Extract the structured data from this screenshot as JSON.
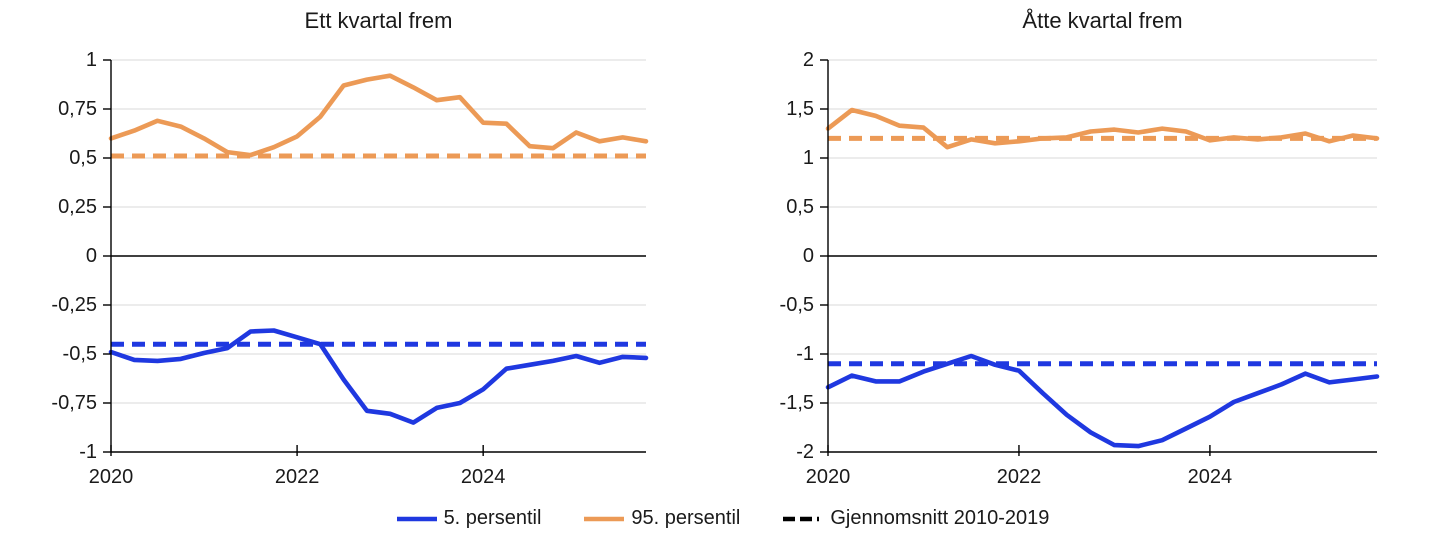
{
  "colors": {
    "p5_blue": "#1F38E0",
    "p95_orange": "#EC9A56",
    "mean_black": "#000000",
    "gridline": "#D9D9D9",
    "axis": "#000000"
  },
  "legend": {
    "items": [
      {
        "label": "5. persentil",
        "color": "#1F38E0",
        "dashed": false
      },
      {
        "label": "95. persentil",
        "color": "#EC9A56",
        "dashed": false
      },
      {
        "label": "Gjennomsnitt 2010-2019",
        "color": "#000000",
        "dashed": true
      }
    ]
  },
  "chart_data": [
    {
      "type": "line",
      "title": "Ett kvartal frem",
      "x": [
        "2020Q1",
        "2020Q2",
        "2020Q3",
        "2020Q4",
        "2021Q1",
        "2021Q2",
        "2021Q3",
        "2021Q4",
        "2022Q1",
        "2022Q2",
        "2022Q3",
        "2022Q4",
        "2023Q1",
        "2023Q2",
        "2023Q3",
        "2023Q4",
        "2024Q1",
        "2024Q2",
        "2024Q3",
        "2024Q4",
        "2025Q1",
        "2025Q2",
        "2025Q3",
        "2025Q4"
      ],
      "ylim": [
        -1,
        1
      ],
      "grid": "horizontal",
      "y_tick_labels": [
        "1",
        "0,75",
        "0,5",
        "0,25",
        "0",
        "-0,25",
        "-0,5",
        "-0,75",
        "-1"
      ],
      "y_tick_values": [
        1,
        0.75,
        0.5,
        0.25,
        0,
        -0.25,
        -0.5,
        -0.75,
        -1
      ],
      "x_ticks": [
        {
          "index": 0,
          "label": "2020"
        },
        {
          "index": 8,
          "label": "2022"
        },
        {
          "index": 16,
          "label": "2024"
        }
      ],
      "series": [
        {
          "name": "95. persentil",
          "style": "solid",
          "color": "#EC9A56",
          "values": [
            0.6,
            0.64,
            0.69,
            0.66,
            0.6,
            0.53,
            0.515,
            0.555,
            0.61,
            0.71,
            0.87,
            0.9,
            0.92,
            0.86,
            0.795,
            0.81,
            0.68,
            0.675,
            0.56,
            0.55,
            0.63,
            0.585,
            0.605,
            0.585
          ]
        },
        {
          "name": "5. persentil",
          "style": "solid",
          "color": "#1F38E0",
          "values": [
            -0.49,
            -0.53,
            -0.535,
            -0.525,
            -0.495,
            -0.47,
            -0.385,
            -0.38,
            -0.415,
            -0.45,
            -0.63,
            -0.79,
            -0.805,
            -0.85,
            -0.775,
            -0.75,
            -0.68,
            -0.575,
            -0.555,
            -0.535,
            -0.51,
            -0.545,
            -0.515,
            -0.52
          ]
        },
        {
          "name": "Gjennomsnitt 2010-2019 (95. persentil)",
          "style": "dashed",
          "color": "#EC9A56",
          "value": 0.51
        },
        {
          "name": "Gjennomsnitt 2010-2019 (5. persentil)",
          "style": "dashed",
          "color": "#1F38E0",
          "value": -0.45
        }
      ]
    },
    {
      "type": "line",
      "title": "Åtte kvartal frem",
      "x": [
        "2020Q1",
        "2020Q2",
        "2020Q3",
        "2020Q4",
        "2021Q1",
        "2021Q2",
        "2021Q3",
        "2021Q4",
        "2022Q1",
        "2022Q2",
        "2022Q3",
        "2022Q4",
        "2023Q1",
        "2023Q2",
        "2023Q3",
        "2023Q4",
        "2024Q1",
        "2024Q2",
        "2024Q3",
        "2024Q4",
        "2025Q1",
        "2025Q2",
        "2025Q3",
        "2025Q4"
      ],
      "ylim": [
        -2,
        2
      ],
      "grid": "horizontal",
      "y_tick_labels": [
        "2",
        "1,5",
        "1",
        "0,5",
        "0",
        "-0,5",
        "-1",
        "-1,5",
        "-2"
      ],
      "y_tick_values": [
        2,
        1.5,
        1,
        0.5,
        0,
        -0.5,
        -1,
        -1.5,
        -2
      ],
      "x_ticks": [
        {
          "index": 0,
          "label": "2020"
        },
        {
          "index": 8,
          "label": "2022"
        },
        {
          "index": 16,
          "label": "2024"
        }
      ],
      "series": [
        {
          "name": "95. persentil",
          "style": "solid",
          "color": "#EC9A56",
          "values": [
            1.3,
            1.49,
            1.43,
            1.33,
            1.31,
            1.11,
            1.19,
            1.15,
            1.17,
            1.2,
            1.21,
            1.27,
            1.29,
            1.26,
            1.3,
            1.27,
            1.18,
            1.21,
            1.19,
            1.21,
            1.25,
            1.17,
            1.23,
            1.2
          ]
        },
        {
          "name": "5. persentil",
          "style": "solid",
          "color": "#1F38E0",
          "values": [
            -1.34,
            -1.22,
            -1.28,
            -1.28,
            -1.18,
            -1.1,
            -1.02,
            -1.11,
            -1.17,
            -1.4,
            -1.62,
            -1.8,
            -1.93,
            -1.94,
            -1.88,
            -1.76,
            -1.64,
            -1.49,
            -1.4,
            -1.31,
            -1.2,
            -1.29,
            -1.26,
            -1.23
          ]
        },
        {
          "name": "Gjennomsnitt 2010-2019 (95. persentil)",
          "style": "dashed",
          "color": "#EC9A56",
          "value": 1.2
        },
        {
          "name": "Gjennomsnitt 2010-2019 (5. persentil)",
          "style": "dashed",
          "color": "#1F38E0",
          "value": -1.1
        }
      ]
    }
  ]
}
